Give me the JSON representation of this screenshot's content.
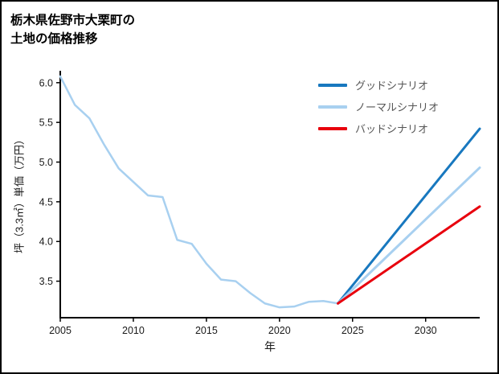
{
  "page": {
    "title_line1": "栃木県佐野市大栗町の",
    "title_line2": "土地の価格推移"
  },
  "chart_data": {
    "type": "line",
    "title": "栃木県佐野市大栗町の土地の価格推移",
    "xlabel": "年",
    "ylabel": "坪（3.3㎡）単価（万円）",
    "xlim": [
      2005,
      2033.7
    ],
    "ylim": [
      3.04,
      6.15
    ],
    "xticks": [
      2005,
      2010,
      2015,
      2020,
      2025,
      2030
    ],
    "yticks": [
      3.5,
      4.0,
      4.5,
      5.0,
      5.5,
      6.0
    ],
    "grid": false,
    "legend_position": "top-right",
    "colors": {
      "good": "#1878bf",
      "normal": "#a8d0f0",
      "bad": "#e8000d",
      "axis": "#000000"
    },
    "series": [
      {
        "name": "history",
        "color": "#a8d0f0",
        "width": 2.5,
        "x": [
          2005,
          2006,
          2007,
          2008,
          2009,
          2010,
          2011,
          2012,
          2013,
          2014,
          2015,
          2016,
          2017,
          2018,
          2019,
          2020,
          2021,
          2022,
          2023,
          2024
        ],
        "values": [
          6.08,
          5.72,
          5.55,
          5.22,
          4.92,
          4.75,
          4.58,
          4.56,
          4.02,
          3.97,
          3.72,
          3.52,
          3.5,
          3.35,
          3.22,
          3.17,
          3.18,
          3.24,
          3.25,
          3.22
        ]
      },
      {
        "name": "グッドシナリオ",
        "color": "#1878bf",
        "width": 3,
        "x": [
          2024,
          2033.7
        ],
        "values": [
          3.22,
          5.42
        ]
      },
      {
        "name": "ノーマルシナリオ",
        "color": "#a8d0f0",
        "width": 3,
        "x": [
          2024,
          2033.7
        ],
        "values": [
          3.22,
          4.93
        ]
      },
      {
        "name": "バッドシナリオ",
        "color": "#e8000d",
        "width": 3,
        "x": [
          2024,
          2033.7
        ],
        "values": [
          3.22,
          4.44
        ]
      }
    ],
    "legend": [
      {
        "label": "グッドシナリオ",
        "color": "#1878bf"
      },
      {
        "label": "ノーマルシナリオ",
        "color": "#a8d0f0"
      },
      {
        "label": "バッドシナリオ",
        "color": "#e8000d"
      }
    ]
  }
}
